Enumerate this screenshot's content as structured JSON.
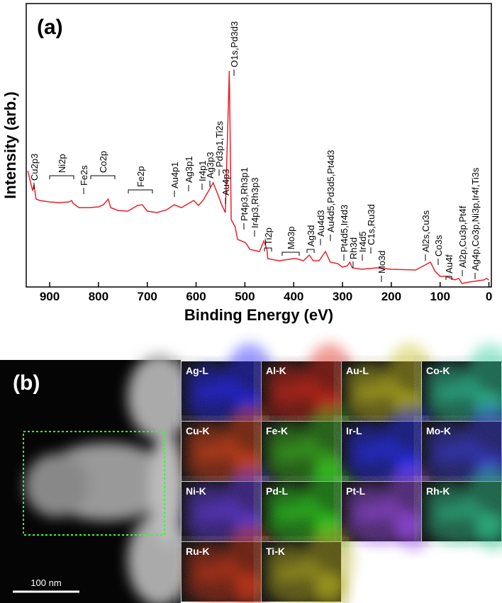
{
  "chart_data": {
    "type": "line",
    "panel_label": "(a)",
    "xlabel": "Binding Energy (eV)",
    "ylabel": "Intensity (arb.)",
    "color": "#e8202a",
    "xlim": [
      948,
      -5
    ],
    "xticks": [
      900,
      800,
      700,
      600,
      500,
      400,
      300,
      200,
      100,
      0
    ],
    "ylim": [
      0,
      100
    ],
    "x": [
      945,
      935,
      932,
      928,
      920,
      900,
      880,
      860,
      855,
      852,
      840,
      820,
      800,
      790,
      780,
      775,
      760,
      740,
      720,
      710,
      700,
      680,
      660,
      645,
      630,
      605,
      595,
      585,
      575,
      565,
      555,
      547,
      540,
      532,
      528,
      520,
      515,
      500,
      496,
      490,
      470,
      461,
      455,
      453,
      430,
      400,
      395,
      380,
      368,
      360,
      348,
      335,
      325,
      310,
      300,
      290,
      285,
      280,
      260,
      230,
      200,
      150,
      120,
      110,
      100,
      90,
      80,
      70,
      62,
      55,
      40,
      20,
      10,
      5,
      0
    ],
    "values": [
      41,
      34,
      36,
      31,
      30.5,
      30,
      29.75,
      30,
      30.5,
      29.5,
      28,
      28,
      28.25,
      29,
      31,
      28,
      27,
      26.75,
      28.75,
      29,
      26.75,
      26.25,
      27.25,
      29,
      28,
      30.5,
      28.75,
      30.75,
      33.75,
      36.75,
      32.5,
      28.75,
      26.25,
      76.25,
      23.75,
      21.25,
      16.75,
      15.75,
      15,
      13.25,
      12.5,
      16.25,
      13.25,
      10,
      9.25,
      10,
      10,
      9.25,
      11.25,
      9.25,
      9.25,
      12.5,
      8.75,
      8.25,
      7,
      7.5,
      8.75,
      6.75,
      6.25,
      6.75,
      6.25,
      6,
      8.75,
      5.5,
      3.75,
      3.75,
      3.25,
      2.5,
      3,
      1.25,
      1.75,
      2.25,
      2.5,
      3,
      2.5
    ],
    "annotations": [
      "Cu2p3",
      "Ni2p",
      "Fe2s",
      "Co2p",
      "Fe2p",
      "Au4p1",
      "Ag3p1",
      "Ir4p1",
      "Ag3p3",
      "Pd3p1,Ti2s",
      "Au4p3",
      "O1s,Pd3d3",
      "Pt4p3,Rh3p1",
      "Ir4p3,Rh3p3",
      "Ti2p",
      "Mo3p",
      "Ag3d",
      "Au4d3",
      "Au4d5,Pd3d5,Pt4d3",
      "Pt4d5,Ir4d3",
      "Rh3d",
      "Ir4d5",
      "C1s,Ru3d",
      "Mo3d",
      "Al2s,Cu3s",
      "Co3s",
      "Au4f",
      "Al2p,Cu3p,Pt4f",
      "Ag4p,Co3p,Ni3p,Ir4f,Ti3s"
    ]
  },
  "panel_b": {
    "panel_label": "(b)",
    "scale_bar": "100 nm",
    "maps": [
      {
        "label": "Ag-L",
        "color": "#2a2aff"
      },
      {
        "label": "Al-K",
        "color": "#e02a1a"
      },
      {
        "label": "Au-L",
        "color": "#c8c020"
      },
      {
        "label": "Co-K",
        "color": "#30d0a0"
      },
      {
        "label": "Cu-K",
        "color": "#e84a1a"
      },
      {
        "label": "Fe-K",
        "color": "#40c020"
      },
      {
        "label": "Ir-L",
        "color": "#2a30ff"
      },
      {
        "label": "Mo-K",
        "color": "#4040e0"
      },
      {
        "label": "Ni-K",
        "color": "#6a40f0"
      },
      {
        "label": "Pd-L",
        "color": "#30e020"
      },
      {
        "label": "Pt-L",
        "color": "#a050f0"
      },
      {
        "label": "Rh-K",
        "color": "#30c890"
      },
      {
        "label": "Ru-K",
        "color": "#d83a1a"
      },
      {
        "label": "Ti-K",
        "color": "#b8b020"
      }
    ]
  }
}
